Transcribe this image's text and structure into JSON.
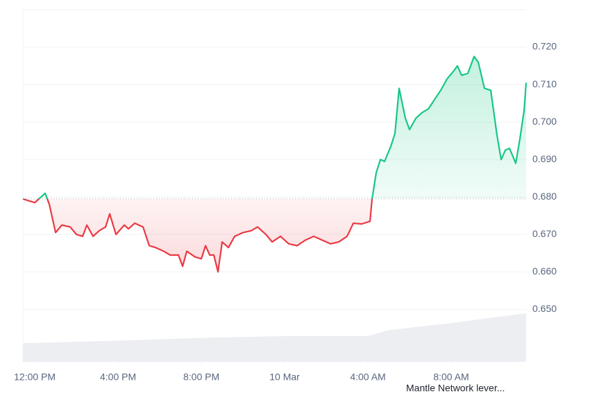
{
  "chart_data": {
    "type": "line",
    "xlim": [
      -0.57,
      23.6
    ],
    "xticks": [
      {
        "value": 0,
        "label": "12:00 PM"
      },
      {
        "value": 4,
        "label": "4:00 PM"
      },
      {
        "value": 8,
        "label": "8:00 PM"
      },
      {
        "value": 12,
        "label": "10 Mar"
      },
      {
        "value": 16,
        "label": "4:00 AM"
      },
      {
        "value": 20,
        "label": "8:00 AM"
      }
    ],
    "ylim": [
      0.636,
      0.73
    ],
    "yticks": [
      {
        "value": 0.65,
        "label": "0.650"
      },
      {
        "value": 0.66,
        "label": "0.660"
      },
      {
        "value": 0.67,
        "label": "0.670"
      },
      {
        "value": 0.68,
        "label": "0.680"
      },
      {
        "value": 0.69,
        "label": "0.690"
      },
      {
        "value": 0.7,
        "label": "0.700"
      },
      {
        "value": 0.71,
        "label": "0.710"
      },
      {
        "value": 0.72,
        "label": "0.720"
      }
    ],
    "grid": true,
    "baseline": 0.6795,
    "up_color": "#16c784",
    "down_color": "#ea3943",
    "series": [
      {
        "name": "Mantle Network lever...",
        "x": [
          -0.57,
          -0.3,
          0,
          0.3,
          0.5,
          0.7,
          1.0,
          1.3,
          1.7,
          2.0,
          2.3,
          2.5,
          2.8,
          3.1,
          3.4,
          3.6,
          3.9,
          4.3,
          4.5,
          4.8,
          5.2,
          5.5,
          5.8,
          6.2,
          6.5,
          6.9,
          7.1,
          7.3,
          7.7,
          8.0,
          8.2,
          8.4,
          8.6,
          8.8,
          9.0,
          9.3,
          9.6,
          10.0,
          10.4,
          10.7,
          11.1,
          11.4,
          11.8,
          12.2,
          12.6,
          13.0,
          13.4,
          13.8,
          14.2,
          14.6,
          15.0,
          15.3,
          15.7,
          16.1,
          16.2,
          16.4,
          16.6,
          16.8,
          17.1,
          17.3,
          17.5,
          17.8,
          18.0,
          18.3,
          18.6,
          18.9,
          19.2,
          19.5,
          19.8,
          20.1,
          20.3,
          20.5,
          20.8,
          21.1,
          21.3,
          21.6,
          21.9,
          22.2,
          22.4,
          22.6,
          22.8,
          23.1,
          23.3,
          23.5,
          23.6
        ],
        "values": [
          0.6795,
          0.679,
          0.6785,
          0.68,
          0.681,
          0.678,
          0.6705,
          0.6725,
          0.672,
          0.67,
          0.6695,
          0.6725,
          0.6695,
          0.671,
          0.672,
          0.6755,
          0.67,
          0.6725,
          0.6715,
          0.673,
          0.672,
          0.667,
          0.6665,
          0.6655,
          0.6645,
          0.6645,
          0.6615,
          0.6655,
          0.664,
          0.6635,
          0.667,
          0.6645,
          0.6645,
          0.66,
          0.668,
          0.6665,
          0.6695,
          0.6705,
          0.671,
          0.672,
          0.67,
          0.668,
          0.6695,
          0.6675,
          0.667,
          0.6685,
          0.6695,
          0.6685,
          0.6675,
          0.668,
          0.6695,
          0.673,
          0.6728,
          0.6735,
          0.6795,
          0.6865,
          0.69,
          0.6895,
          0.6935,
          0.697,
          0.709,
          0.701,
          0.698,
          0.701,
          0.7025,
          0.7035,
          0.706,
          0.7085,
          0.7115,
          0.7135,
          0.715,
          0.7125,
          0.713,
          0.7175,
          0.716,
          0.709,
          0.7085,
          0.6965,
          0.69,
          0.6925,
          0.693,
          0.689,
          0.6955,
          0.703,
          0.7105
        ]
      }
    ],
    "volume": {
      "color": "#eceef2",
      "lim": [
        0,
        100
      ],
      "x": [
        -0.57,
        4,
        8,
        12,
        16,
        17,
        20,
        23.6
      ],
      "values": [
        5.3,
        6,
        6.8,
        7.3,
        7.3,
        9,
        11,
        13.8
      ]
    }
  }
}
